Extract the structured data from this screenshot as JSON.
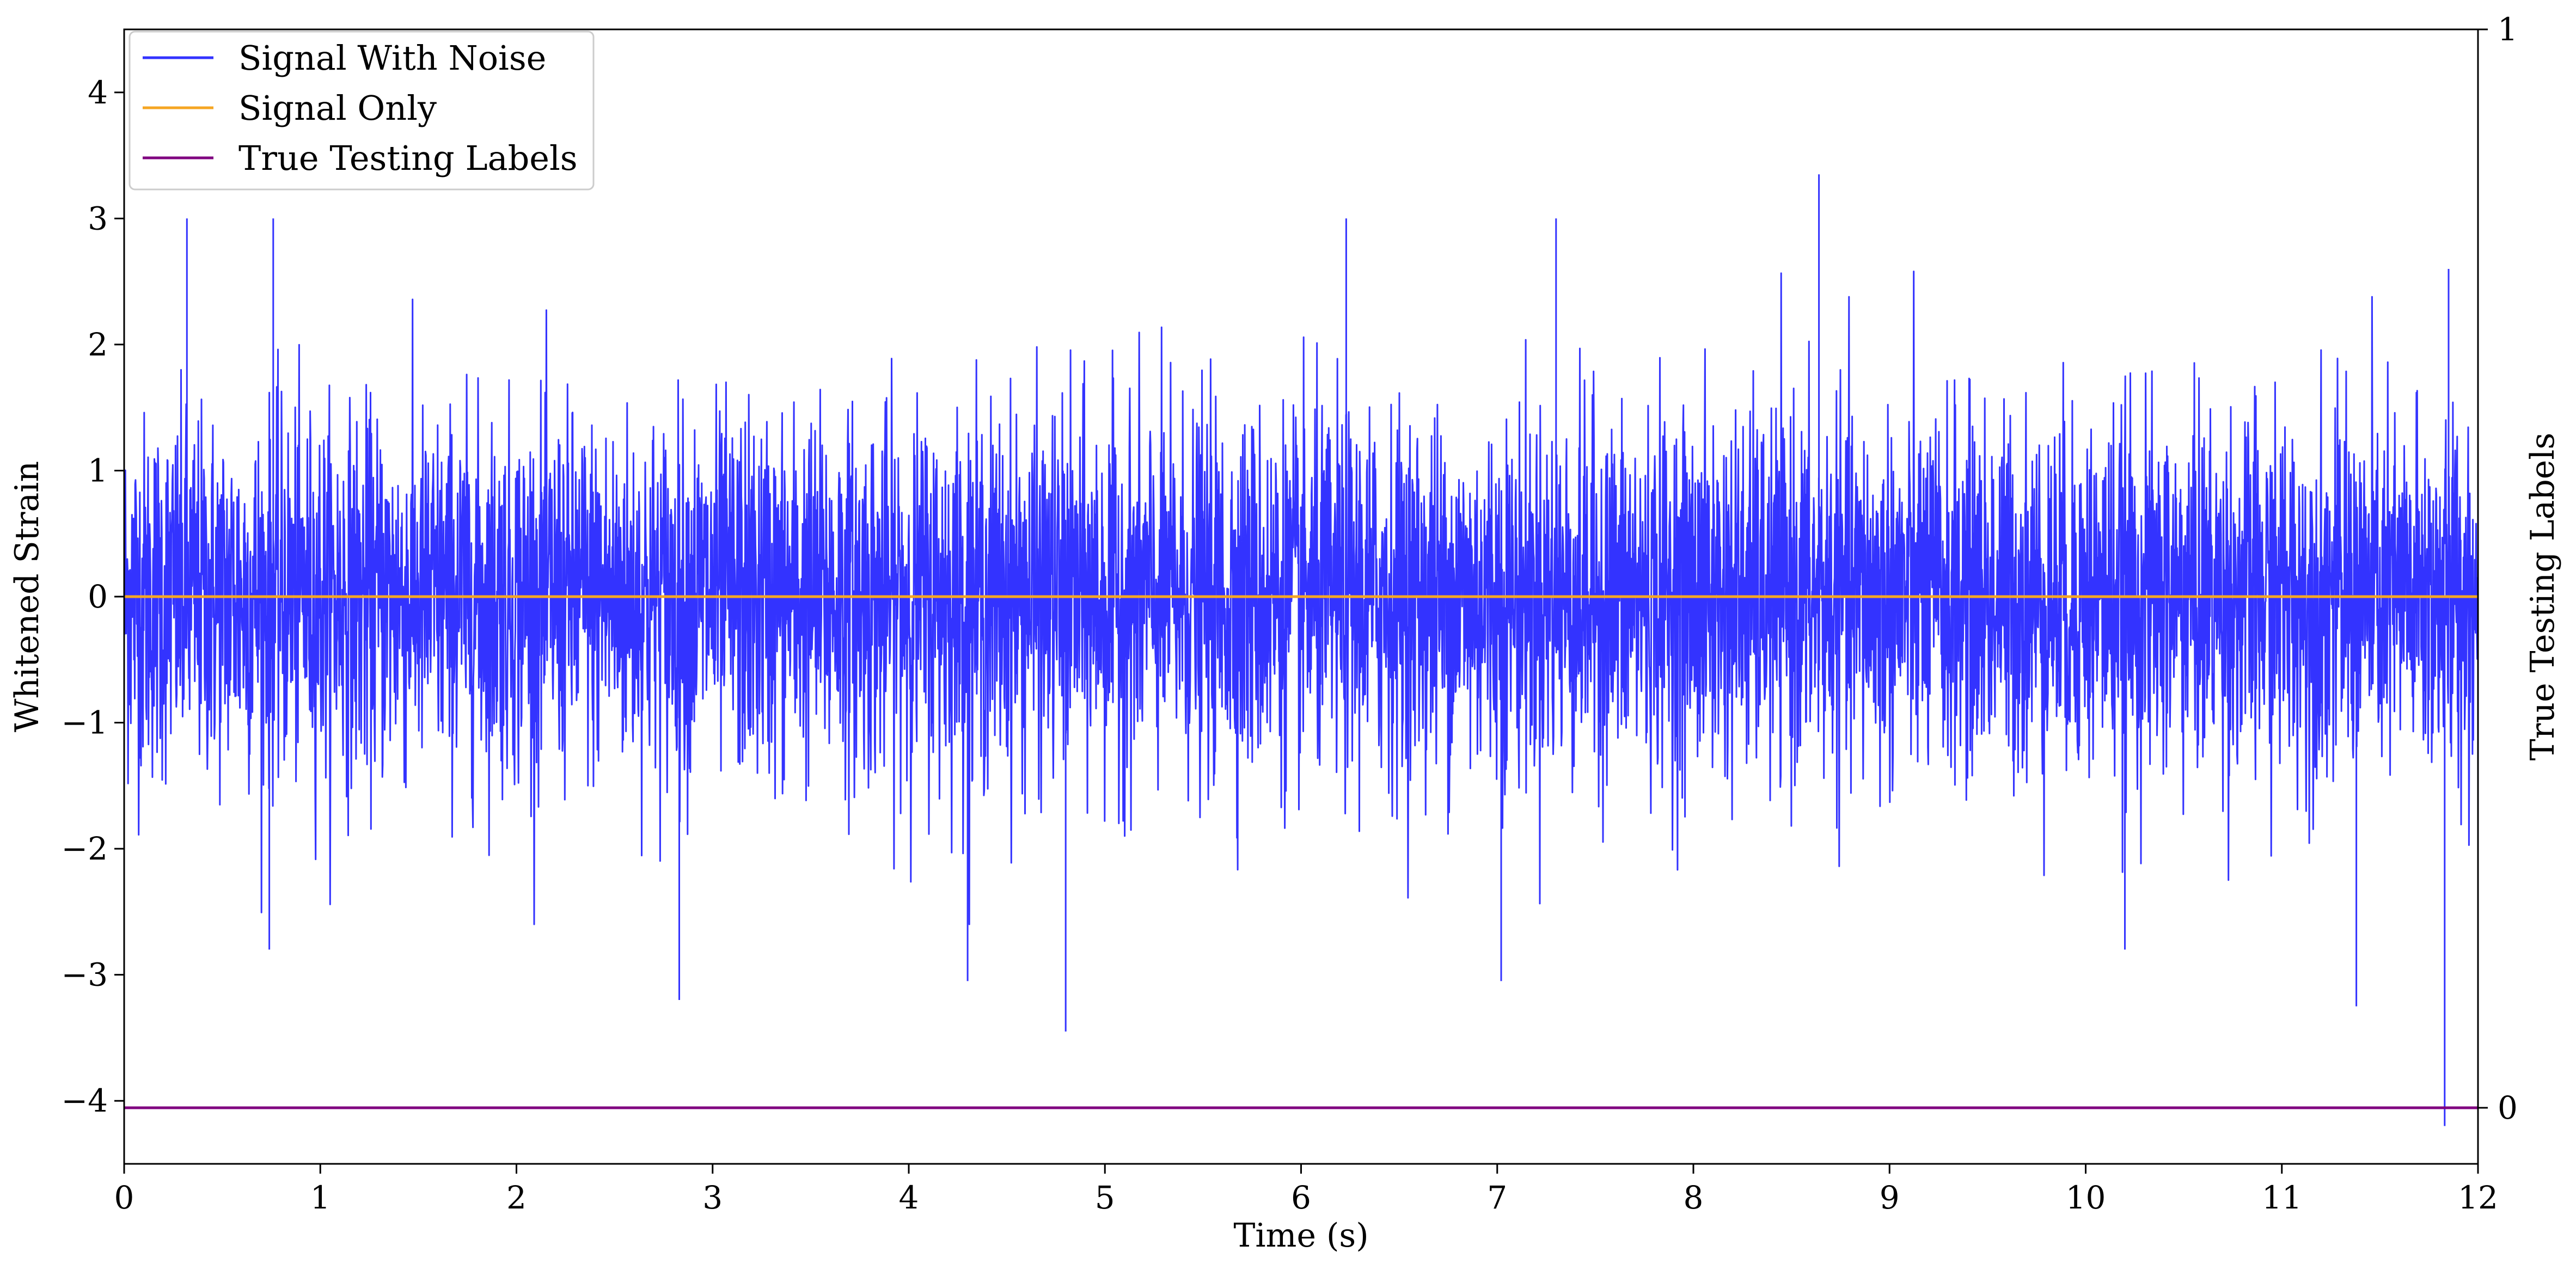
{
  "chart_data": {
    "type": "line",
    "title": "",
    "xlabel": "Time (s)",
    "ylabel": "Whitened Strain",
    "y2label": "True Testing Labels",
    "xlim": [
      0,
      12
    ],
    "ylim": [
      -4.5,
      4.5
    ],
    "y2lim": [
      -0.052,
      1.0
    ],
    "x_ticks": [
      0,
      1,
      2,
      3,
      4,
      5,
      6,
      7,
      8,
      9,
      10,
      11,
      12
    ],
    "x_tick_labels": [
      "0",
      "1",
      "2",
      "3",
      "4",
      "5",
      "6",
      "7",
      "8",
      "9",
      "10",
      "11",
      "12"
    ],
    "y_ticks": [
      -4,
      -3,
      -2,
      -1,
      0,
      1,
      2,
      3,
      4
    ],
    "y_tick_labels": [
      "−4",
      "−3",
      "−2",
      "−1",
      "0",
      "1",
      "2",
      "3",
      "4"
    ],
    "y2_ticks": [
      0,
      1
    ],
    "y2_tick_labels": [
      "0",
      "1"
    ],
    "grid": false,
    "legend_position": "top-left",
    "series": [
      {
        "name": "Signal With Noise",
        "color": "#3333ff",
        "style": "dense noise, approximately zero-mean with unit-scale spread",
        "notable_peaks": [
          {
            "x": 0.32,
            "y": 3.0
          },
          {
            "x": 0.76,
            "y": 3.0
          },
          {
            "x": 6.23,
            "y": 3.0
          },
          {
            "x": 7.3,
            "y": 3.0
          },
          {
            "x": 8.64,
            "y": 3.35
          },
          {
            "x": 11.85,
            "y": 2.6
          }
        ],
        "notable_troughs": [
          {
            "x": 0.74,
            "y": -2.8
          },
          {
            "x": 2.83,
            "y": -3.2
          },
          {
            "x": 4.3,
            "y": -3.05
          },
          {
            "x": 4.8,
            "y": -3.45
          },
          {
            "x": 7.02,
            "y": -3.05
          },
          {
            "x": 10.2,
            "y": -2.8
          },
          {
            "x": 11.38,
            "y": -3.25
          },
          {
            "x": 11.83,
            "y": -4.2
          }
        ]
      },
      {
        "name": "Signal Only",
        "color": "#f5a623",
        "x": [
          0,
          12
        ],
        "y": [
          0,
          0
        ]
      },
      {
        "name": "True Testing Labels",
        "color": "#800080",
        "axis": "right",
        "x": [
          0,
          12
        ],
        "y": [
          0,
          0
        ]
      }
    ]
  }
}
